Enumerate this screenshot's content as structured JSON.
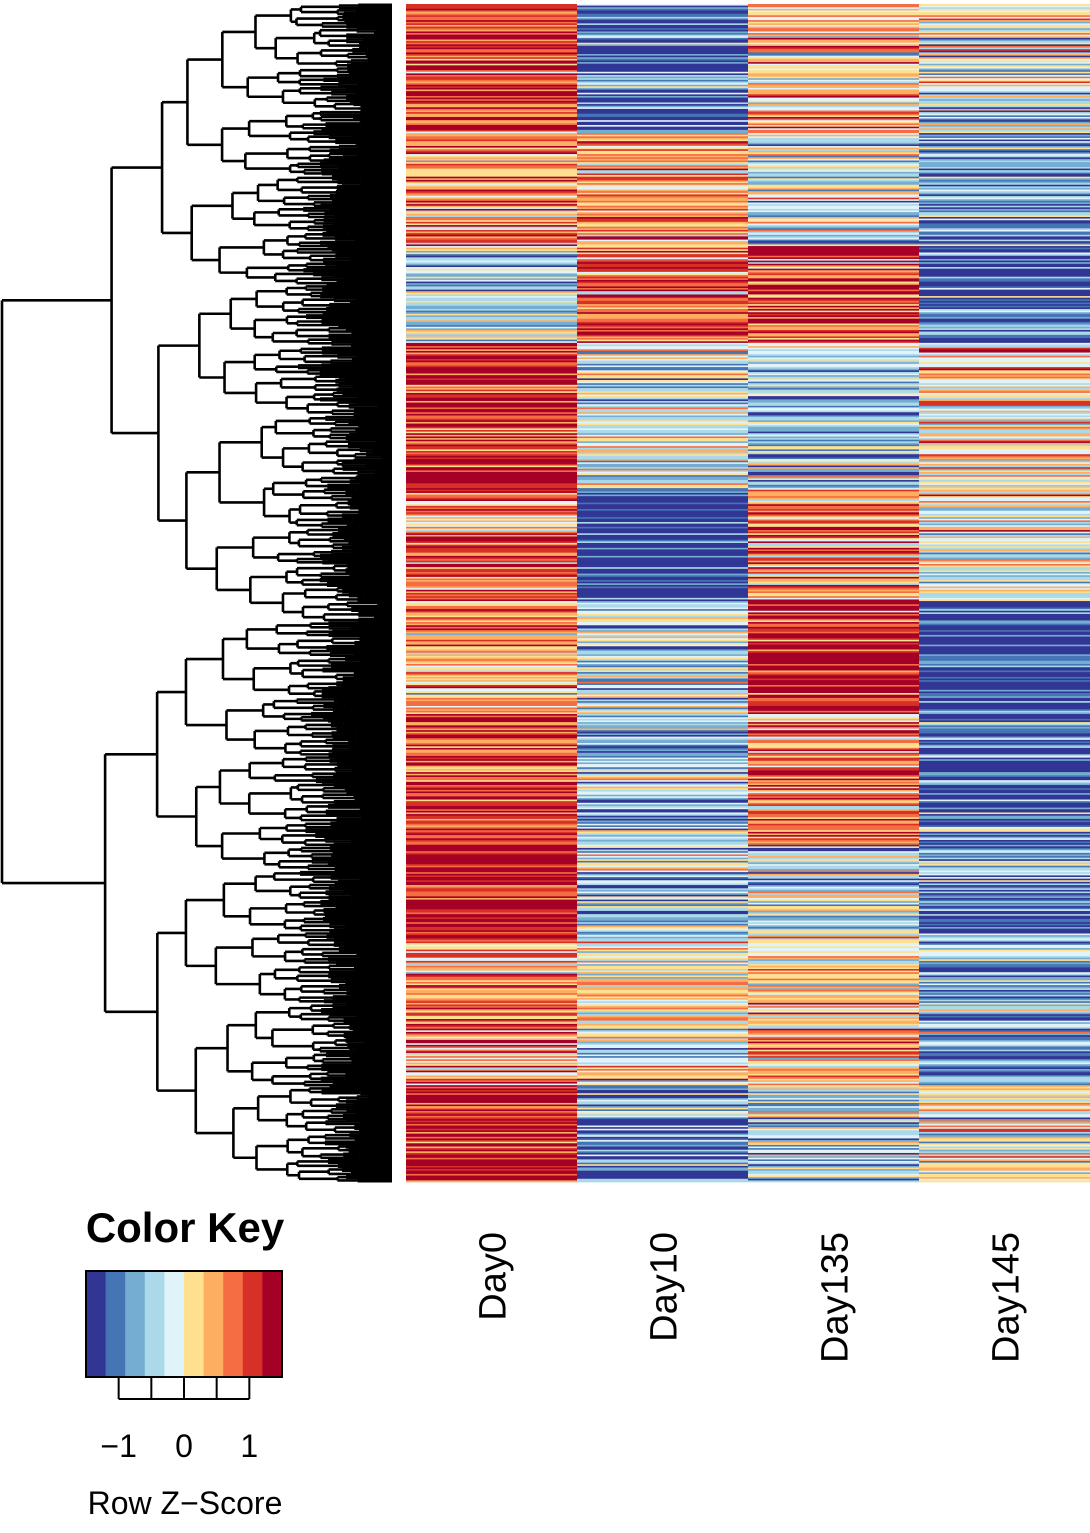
{
  "chart_data": {
    "type": "heatmap",
    "title": "",
    "xlabel": "",
    "ylabel": "",
    "columns": [
      "Day0",
      "Day10",
      "Day135",
      "Day145"
    ],
    "row_dendrogram": true,
    "row_clusters": [
      {
        "rows": 80,
        "pattern": [
          0.6,
          -0.7,
          0.2,
          -0.1
        ]
      },
      {
        "rows": 70,
        "pattern": [
          0.4,
          0.3,
          -0.2,
          -0.5
        ]
      },
      {
        "rows": 60,
        "pattern": [
          -0.3,
          0.5,
          0.6,
          -0.8
        ]
      },
      {
        "rows": 90,
        "pattern": [
          0.7,
          -0.2,
          -0.3,
          0.1
        ]
      },
      {
        "rows": 70,
        "pattern": [
          0.5,
          -0.9,
          0.4,
          0.0
        ]
      },
      {
        "rows": 70,
        "pattern": [
          0.3,
          -0.3,
          0.8,
          -0.8
        ]
      },
      {
        "rows": 80,
        "pattern": [
          0.6,
          -0.4,
          0.5,
          -0.7
        ]
      },
      {
        "rows": 60,
        "pattern": [
          0.9,
          -0.2,
          -0.3,
          -0.4
        ]
      },
      {
        "rows": 90,
        "pattern": [
          0.4,
          0.0,
          0.1,
          -0.5
        ]
      },
      {
        "rows": 60,
        "pattern": [
          0.8,
          -0.6,
          -0.2,
          0.0
        ]
      }
    ],
    "color_key": {
      "title": "Color Key",
      "xlabel": "Row Z−Score",
      "range": [
        -1.5,
        1.5
      ],
      "ticks": [
        -1,
        -0.5,
        0,
        0.5,
        1
      ],
      "tick_labels": [
        {
          "value": -1,
          "label": "−1"
        },
        {
          "value": 0,
          "label": "0"
        },
        {
          "value": 1,
          "label": "1"
        }
      ],
      "colors": [
        "#313695",
        "#4575b4",
        "#74add1",
        "#abd9e9",
        "#e0f3f8",
        "#fee090",
        "#fdae61",
        "#f46d43",
        "#d73027",
        "#a50026"
      ]
    }
  }
}
